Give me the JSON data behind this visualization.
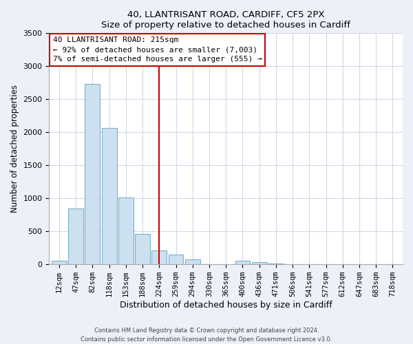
{
  "title": "40, LLANTRISANT ROAD, CARDIFF, CF5 2PX",
  "subtitle": "Size of property relative to detached houses in Cardiff",
  "xlabel": "Distribution of detached houses by size in Cardiff",
  "ylabel": "Number of detached properties",
  "bar_color": "#cce0f0",
  "bar_edge_color": "#7ab0cc",
  "bins": [
    "12sqm",
    "47sqm",
    "82sqm",
    "118sqm",
    "153sqm",
    "188sqm",
    "224sqm",
    "259sqm",
    "294sqm",
    "330sqm",
    "365sqm",
    "400sqm",
    "436sqm",
    "471sqm",
    "506sqm",
    "541sqm",
    "577sqm",
    "612sqm",
    "647sqm",
    "683sqm",
    "718sqm"
  ],
  "values": [
    55,
    850,
    2730,
    2070,
    1010,
    460,
    210,
    145,
    75,
    0,
    0,
    50,
    30,
    15,
    0,
    0,
    0,
    0,
    0,
    0,
    0
  ],
  "ylim": [
    0,
    3500
  ],
  "yticks": [
    0,
    500,
    1000,
    1500,
    2000,
    2500,
    3000,
    3500
  ],
  "vline_x": 6,
  "vline_color": "#cc0000",
  "annotation_title": "40 LLANTRISANT ROAD: 215sqm",
  "annotation_line1": "← 92% of detached houses are smaller (7,003)",
  "annotation_line2": "7% of semi-detached houses are larger (555) →",
  "annotation_box_color": "#ffffff",
  "annotation_box_edge": "#cc0000",
  "footer_line1": "Contains HM Land Registry data © Crown copyright and database right 2024.",
  "footer_line2": "Contains public sector information licensed under the Open Government Licence v3.0.",
  "background_color": "#edf0f8",
  "plot_bg_color": "#ffffff",
  "grid_color": "#d0d8e8"
}
